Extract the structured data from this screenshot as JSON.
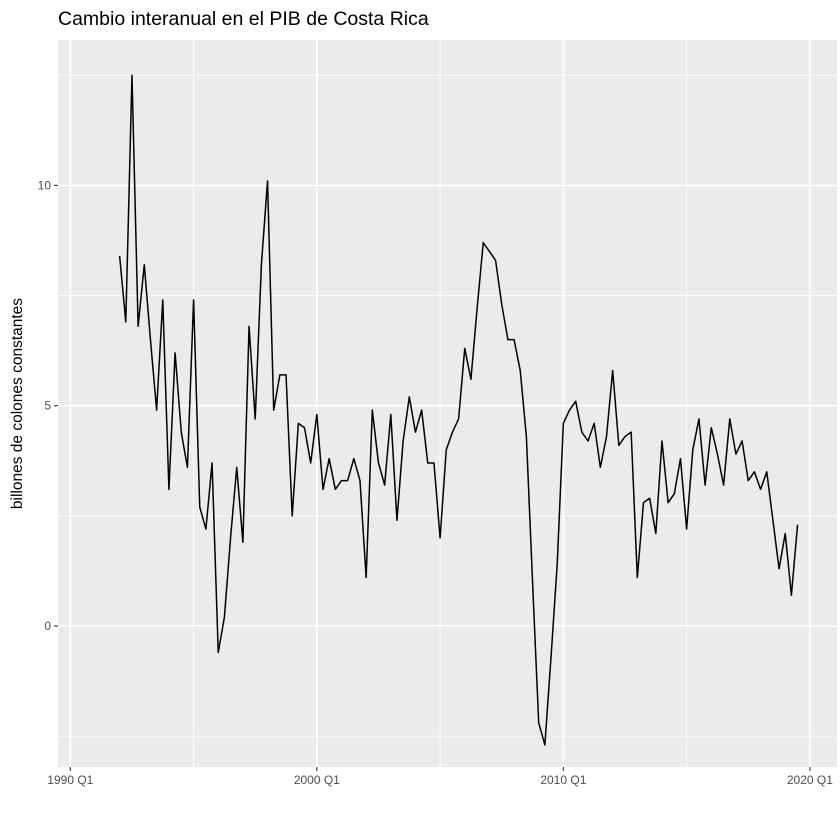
{
  "chart_data": {
    "type": "line",
    "title": "Cambio interanual en el PIB de Costa Rica",
    "xlabel": "",
    "ylabel": "billones de colones constantes",
    "xlim": [
      1989.5,
      2021.1
    ],
    "ylim": [
      -3.2,
      13.3
    ],
    "x_ticks": [
      1990,
      2000,
      2010,
      2020
    ],
    "x_tick_labels": [
      "1990 Q1",
      "2000 Q1",
      "2010 Q1",
      "2020 Q1"
    ],
    "y_ticks": [
      0,
      5,
      10
    ],
    "y_tick_labels": [
      "0",
      "5",
      "10"
    ],
    "grid": true,
    "panel_background": "#ebebeb",
    "line_color": "#000000",
    "series": [
      {
        "x": [
          1992.0,
          1992.25,
          1992.5,
          1992.75,
          1993.0,
          1993.25,
          1993.5,
          1993.75,
          1994.0,
          1994.25,
          1994.5,
          1994.75,
          1995.0,
          1995.25,
          1995.5,
          1995.75,
          1996.0,
          1996.25,
          1996.5,
          1996.75,
          1997.0,
          1997.25,
          1997.5,
          1997.75,
          1998.0,
          1998.25,
          1998.5,
          1998.75,
          1999.0,
          1999.25,
          1999.5,
          1999.75,
          2000.0,
          2000.25,
          2000.5,
          2000.75,
          2001.0,
          2001.25,
          2001.5,
          2001.75,
          2002.0,
          2002.25,
          2002.5,
          2002.75,
          2003.0,
          2003.25,
          2003.5,
          2003.75,
          2004.0,
          2004.25,
          2004.5,
          2004.75,
          2005.0,
          2005.25,
          2005.5,
          2005.75,
          2006.0,
          2006.25,
          2006.5,
          2006.75,
          2007.0,
          2007.25,
          2007.5,
          2007.75,
          2008.0,
          2008.25,
          2008.5,
          2008.75,
          2009.0,
          2009.25,
          2009.5,
          2009.75,
          2010.0,
          2010.25,
          2010.5,
          2010.75,
          2011.0,
          2011.25,
          2011.5,
          2011.75,
          2012.0,
          2012.25,
          2012.5,
          2012.75,
          2013.0,
          2013.25,
          2013.5,
          2013.75,
          2014.0,
          2014.25,
          2014.5,
          2014.75,
          2015.0,
          2015.25,
          2015.5,
          2015.75,
          2016.0,
          2016.25,
          2016.5,
          2016.75,
          2017.0,
          2017.25,
          2017.5,
          2017.75,
          2018.0,
          2018.25,
          2018.5,
          2018.75,
          2019.0,
          2019.25,
          2019.5
        ],
        "values": [
          8.4,
          6.9,
          12.5,
          6.8,
          8.2,
          6.5,
          4.9,
          7.4,
          3.1,
          6.2,
          4.4,
          3.6,
          7.4,
          2.7,
          2.2,
          3.7,
          -0.6,
          0.2,
          2.0,
          3.6,
          1.9,
          6.8,
          4.7,
          8.2,
          10.1,
          4.9,
          5.7,
          5.7,
          2.5,
          4.6,
          4.5,
          3.7,
          4.8,
          3.1,
          3.8,
          3.1,
          3.3,
          3.3,
          3.8,
          3.3,
          1.1,
          4.9,
          3.7,
          3.2,
          4.8,
          2.4,
          4.2,
          5.2,
          4.4,
          4.9,
          3.7,
          3.7,
          2.0,
          4.0,
          4.4,
          4.7,
          6.3,
          5.6,
          7.2,
          8.7,
          8.5,
          8.3,
          7.3,
          6.5,
          6.5,
          5.8,
          4.3,
          1.0,
          -2.2,
          -2.7,
          -0.7,
          1.4,
          4.6,
          4.9,
          5.1,
          4.4,
          4.2,
          4.6,
          3.6,
          4.3,
          5.8,
          4.1,
          4.3,
          4.4,
          1.1,
          2.8,
          2.9,
          2.1,
          4.2,
          2.8,
          3.0,
          3.8,
          2.2,
          4.0,
          4.7,
          3.2,
          4.5,
          3.9,
          3.2,
          4.7,
          3.9,
          4.2,
          3.3,
          3.5,
          3.1,
          3.5,
          2.4,
          1.3,
          2.1,
          0.7,
          2.3
        ]
      }
    ]
  }
}
